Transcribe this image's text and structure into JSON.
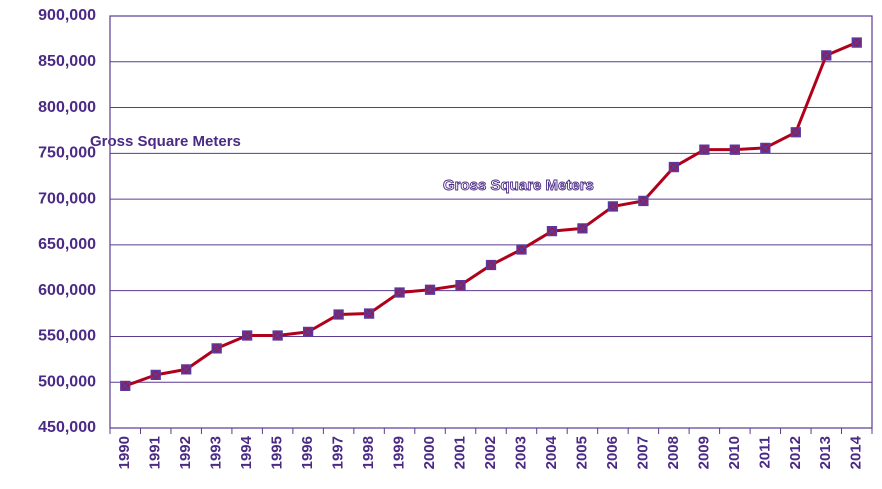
{
  "chart_data": {
    "type": "line",
    "ylabel": "Gross Square Meters",
    "categories": [
      "1990",
      "1991",
      "1992",
      "1993",
      "1994",
      "1995",
      "1996",
      "1997",
      "1998",
      "1999",
      "2000",
      "2001",
      "2002",
      "2003",
      "2004",
      "2005",
      "2006",
      "2007",
      "2008",
      "2009",
      "2010",
      "2011",
      "2012",
      "2013",
      "2014"
    ],
    "series": [
      {
        "name": "Gross Square Meters",
        "color": "#b0001a",
        "values": [
          496000,
          508000,
          514000,
          537000,
          551000,
          551000,
          555000,
          574000,
          575000,
          598000,
          601000,
          606000,
          628000,
          645000,
          665000,
          668000,
          692000,
          698000,
          735000,
          754000,
          754000,
          756000,
          773000,
          857000,
          871000
        ]
      }
    ],
    "ylim": [
      450000,
      900000
    ],
    "yticks": [
      {
        "value": 450000,
        "label": "450,000"
      },
      {
        "value": 500000,
        "label": "500,000"
      },
      {
        "value": 550000,
        "label": "550,000"
      },
      {
        "value": 600000,
        "label": "600,000"
      },
      {
        "value": 650000,
        "label": "650,000"
      },
      {
        "value": 700000,
        "label": "700,000"
      },
      {
        "value": 750000,
        "label": "750,000"
      },
      {
        "value": 800000,
        "label": "800,000"
      },
      {
        "value": 850000,
        "label": "850,000"
      },
      {
        "value": 900000,
        "label": "900,000"
      }
    ],
    "grid": true
  }
}
